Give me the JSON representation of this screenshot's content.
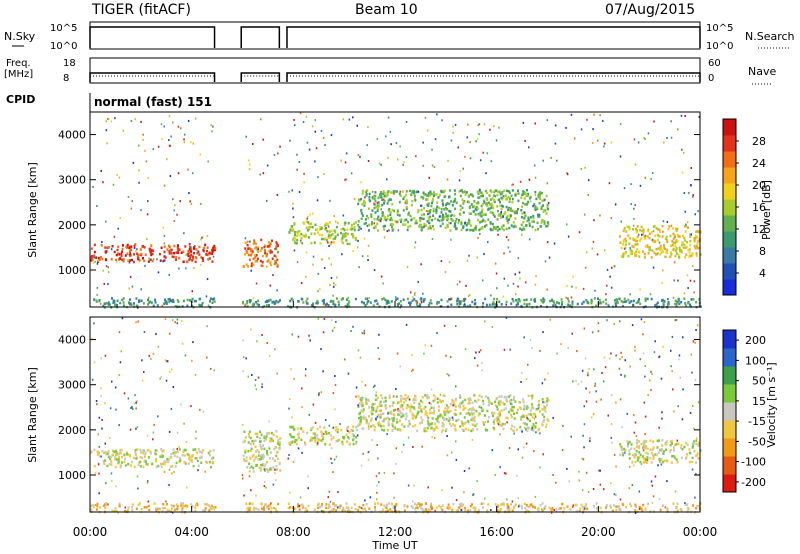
{
  "header": {
    "station": "TIGER (fitACF)",
    "beam": "Beam 10",
    "date": "07/Aug/2015"
  },
  "top_panels": {
    "nsky_label": "N.Sky",
    "nsky_ticks": [
      "10^5",
      "10^0"
    ],
    "nsearch_label": "N.Search",
    "nsearch_ticks": [
      "10^5",
      "10^0"
    ],
    "freq_label_1": "Freq.",
    "freq_label_2": "[MHz]",
    "freq_ticks": [
      "18",
      "8"
    ],
    "nave_label": "Nave",
    "nave_ticks": [
      "60",
      "0"
    ],
    "cpid_label": "CPID",
    "cpid_value": "normal (fast) 151"
  },
  "chart_data": [
    {
      "type": "heatmap",
      "name": "power",
      "ylabel": "Slant Range [km]",
      "ylim": [
        180,
        4500
      ],
      "yticks": [
        "1000",
        "2000",
        "3000",
        "4000"
      ],
      "xlim_hours": [
        0,
        24
      ],
      "colorbar_label": "Power [dB]",
      "colorbar_ticks": [
        "4",
        "8",
        "12",
        "16",
        "20",
        "24",
        "28"
      ],
      "colors": [
        "#1a2bdc",
        "#2150b4",
        "#3a7aa6",
        "#3c9a6e",
        "#62b04e",
        "#a8cc2c",
        "#f0d21c",
        "#f7a41a",
        "#f26d14",
        "#e2321c",
        "#cc1111"
      ],
      "data_gaps_hours": [
        [
          4.9,
          5.95
        ],
        [
          7.45,
          7.75
        ]
      ],
      "regions": [
        {
          "t": [
            0.0,
            4.9
          ],
          "r": [
            1200,
            1600
          ],
          "level": 9
        },
        {
          "t": [
            6.0,
            7.45
          ],
          "r": [
            1100,
            1700
          ],
          "level": 8
        },
        {
          "t": [
            7.8,
            10.5
          ],
          "r": [
            1600,
            2100
          ],
          "level": 5
        },
        {
          "t": [
            10.5,
            18.0
          ],
          "r": [
            1900,
            2800
          ],
          "level": 4
        },
        {
          "t": [
            20.8,
            24.0
          ],
          "r": [
            1300,
            2000
          ],
          "level": 6
        },
        {
          "t": [
            0.0,
            24.0
          ],
          "r": [
            200,
            400
          ],
          "level": 3
        }
      ]
    },
    {
      "type": "heatmap",
      "name": "velocity",
      "ylabel": "Slant Range [km]",
      "ylim": [
        180,
        4500
      ],
      "yticks": [
        "1000",
        "2000",
        "3000",
        "4000"
      ],
      "xlim_hours": [
        0,
        24
      ],
      "colorbar_label": "Velocity [m s⁻¹]",
      "colorbar_ticks": [
        "200",
        "100",
        "50",
        "15",
        "-15",
        "-50",
        "-100",
        "-200"
      ],
      "colors": [
        "#1a33cc",
        "#2a67c8",
        "#3ea04a",
        "#7cc83c",
        "#c8c8c0",
        "#f0c840",
        "#f29a18",
        "#e85a14",
        "#dd1a10"
      ],
      "data_gaps_hours": [
        [
          4.9,
          5.95
        ],
        [
          7.45,
          7.75
        ]
      ],
      "regions": [
        {
          "t": [
            0.0,
            4.9
          ],
          "r": [
            1200,
            1600
          ],
          "level": 4
        },
        {
          "t": [
            6.0,
            7.45
          ],
          "r": [
            1100,
            2000
          ],
          "level": 4
        },
        {
          "t": [
            7.8,
            10.5
          ],
          "r": [
            1700,
            2100
          ],
          "level": 4
        },
        {
          "t": [
            10.5,
            18.0
          ],
          "r": [
            2000,
            2800
          ],
          "level": 4
        },
        {
          "t": [
            20.8,
            24.0
          ],
          "r": [
            1300,
            1800
          ],
          "level": 4
        },
        {
          "t": [
            0.0,
            24.0
          ],
          "r": [
            200,
            400
          ],
          "level": 5
        }
      ]
    }
  ],
  "xaxis": {
    "ticks": [
      "00:00",
      "04:00",
      "08:00",
      "12:00",
      "16:00",
      "20:00",
      "00:00"
    ],
    "label": "Time UT"
  }
}
